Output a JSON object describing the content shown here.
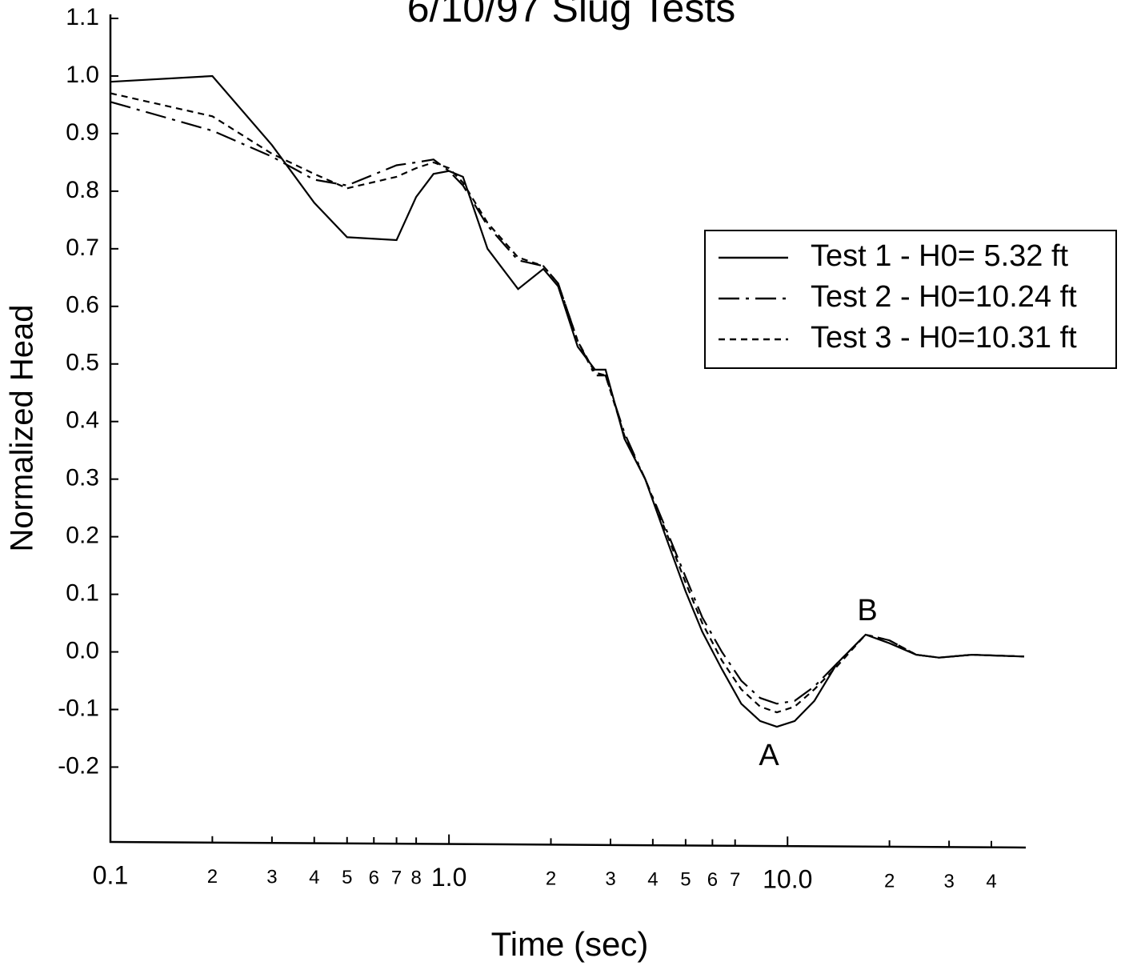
{
  "chart_data": {
    "type": "line",
    "title": "6/10/97 Slug Tests",
    "xlabel": "Time (sec)",
    "ylabel": "Normalized Head",
    "xscale": "log",
    "xlim": [
      0.1,
      50
    ],
    "ylim": [
      -0.33,
      1.1
    ],
    "xticks": [
      0.1,
      {
        "value": 0.2,
        "label": "2"
      },
      {
        "value": 0.3,
        "label": "3"
      },
      {
        "value": 0.4,
        "label": "4"
      },
      {
        "value": 0.5,
        "label": "5"
      },
      {
        "value": 0.6,
        "label": "6"
      },
      {
        "value": 0.7,
        "label": "7"
      },
      {
        "value": 0.8,
        "label": "8"
      },
      {
        "value": 1,
        "label": "1.0"
      },
      2,
      3,
      4,
      5,
      6,
      7,
      {
        "value": 10,
        "label": "10.0"
      },
      {
        "value": 20,
        "label": "2"
      },
      {
        "value": 30,
        "label": "3"
      },
      {
        "value": 40,
        "label": "4"
      }
    ],
    "yticks": [
      1.1,
      {
        "value": 1,
        "label": "1.0"
      },
      0.9,
      0.8,
      0.7,
      0.6,
      0.5,
      0.4,
      0.3,
      0.2,
      0.1,
      {
        "value": 0,
        "label": "0.0"
      },
      -0.1,
      -0.2
    ],
    "grid": false,
    "legend": "upper right",
    "annotations": [
      "A",
      "B"
    ],
    "x": [
      0.1,
      0.2,
      0.3,
      0.4,
      0.5,
      0.7,
      0.8,
      0.9,
      1.0,
      1.1,
      1.3,
      1.6,
      1.9,
      2.1,
      2.4,
      2.7,
      2.9,
      3.3,
      3.8,
      4.4,
      5.0,
      5.6,
      6.4,
      7.3,
      8.3,
      9.3,
      10.5,
      12,
      14,
      17,
      20,
      24,
      28,
      35,
      50
    ],
    "series": [
      {
        "name": "Test 1 - H0= 5.32 ft",
        "color": "#000000",
        "dash": "solid",
        "values": [
          0.99,
          1.0,
          0.88,
          0.78,
          0.72,
          0.715,
          0.79,
          0.83,
          0.835,
          0.825,
          0.7,
          0.63,
          0.665,
          0.635,
          0.53,
          0.49,
          0.49,
          0.37,
          0.3,
          0.195,
          0.105,
          0.035,
          -0.03,
          -0.09,
          -0.12,
          -0.13,
          -0.12,
          -0.085,
          -0.02,
          0.03,
          0.015,
          -0.005,
          -0.01,
          -0.005,
          -0.008
        ]
      },
      {
        "name": "Test 2 - H0=10.24 ft",
        "color": "#000000",
        "dash": "dashed",
        "values": [
          0.955,
          0.905,
          0.86,
          0.82,
          0.81,
          0.845,
          0.85,
          0.855,
          0.835,
          0.81,
          0.74,
          0.68,
          0.67,
          0.64,
          0.54,
          0.48,
          0.48,
          0.38,
          0.3,
          0.21,
          0.13,
          0.06,
          0.0,
          -0.05,
          -0.08,
          -0.09,
          -0.085,
          -0.06,
          -0.02,
          0.03,
          0.02,
          -0.005,
          -0.01,
          -0.005,
          -0.008
        ]
      },
      {
        "name": "Test 3 - H0=10.31 ft",
        "color": "#000000",
        "dash": "dotted",
        "values": [
          0.97,
          0.93,
          0.865,
          0.83,
          0.805,
          0.825,
          0.84,
          0.85,
          0.84,
          0.815,
          0.745,
          0.685,
          0.67,
          0.64,
          0.54,
          0.485,
          0.48,
          0.375,
          0.3,
          0.205,
          0.12,
          0.05,
          -0.015,
          -0.065,
          -0.095,
          -0.105,
          -0.095,
          -0.065,
          -0.025,
          0.03,
          0.02,
          -0.005,
          -0.01,
          -0.005,
          -0.008
        ]
      }
    ]
  }
}
